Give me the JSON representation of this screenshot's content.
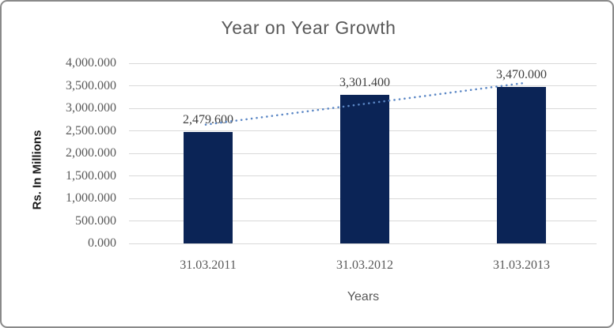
{
  "frame": {
    "background": "#ffffff",
    "border_color": "#8a8a8a"
  },
  "chart_data": {
    "type": "bar",
    "title": "Year on Year Growth",
    "xlabel": "Years",
    "ylabel": "Rs. In Millions",
    "categories": [
      "31.03.2011",
      "31.03.2012",
      "31.03.2013"
    ],
    "values": [
      2479.6,
      3301.4,
      3470.0
    ],
    "data_labels": [
      "2,479.600",
      "3,301.400",
      "3,470.000"
    ],
    "ylim": [
      0,
      4000
    ],
    "ytick_step": 500,
    "ytick_labels": [
      "0.000",
      "500.000",
      "1,000.000",
      "1,500.000",
      "2,000.000",
      "2,500.000",
      "3,000.000",
      "3,500.000",
      "4,000.000"
    ],
    "grid": true,
    "legend": "none",
    "trendline": {
      "type": "linear",
      "style": "dotted",
      "color": "#5b87c5"
    },
    "colors": {
      "bar": "#0b2456",
      "gridline": "#d9d9d9",
      "title": "#595959",
      "tick_labels": "#595959",
      "data_labels": "#3f3f3f",
      "xlabel": "#595959",
      "ylabel": "#1a1a1a"
    }
  }
}
